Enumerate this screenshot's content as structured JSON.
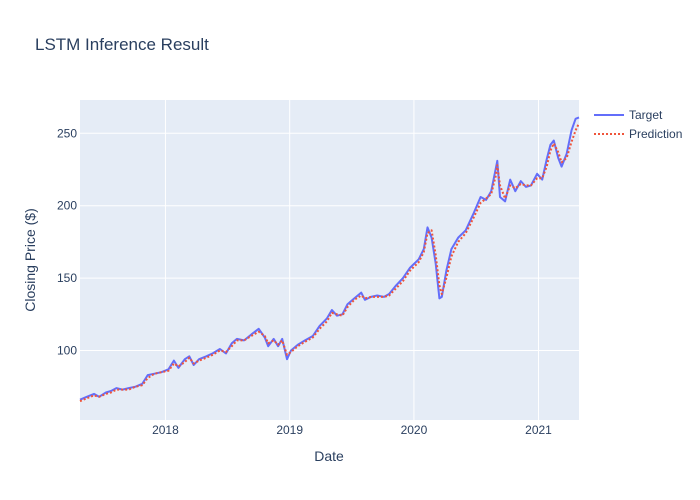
{
  "chart_data": {
    "type": "line",
    "title": "LSTM Inference Result",
    "xlabel": "Date",
    "ylabel": "Closing Price ($)",
    "x_range": [
      "2017-04-25",
      "2021-04-30"
    ],
    "ylim": [
      52,
      273
    ],
    "x_ticks": [
      {
        "value": "2018-01-01",
        "label": "2018"
      },
      {
        "value": "2019-01-01",
        "label": "2019"
      },
      {
        "value": "2020-01-01",
        "label": "2020"
      },
      {
        "value": "2021-01-01",
        "label": "2021"
      }
    ],
    "y_ticks": [
      {
        "value": 100,
        "label": "100"
      },
      {
        "value": 150,
        "label": "150"
      },
      {
        "value": 200,
        "label": "200"
      },
      {
        "value": 250,
        "label": "250"
      }
    ],
    "grid": true,
    "legend_position": "top-right",
    "colors": {
      "plot_bg": "#e5ecf6",
      "grid": "#ffffff",
      "target": "#636efa",
      "prediction": "#ef553b"
    },
    "series": [
      {
        "name": "Target",
        "style": "solid",
        "points": [
          [
            "2017-04-25",
            66
          ],
          [
            "2017-05-15",
            68
          ],
          [
            "2017-06-05",
            70
          ],
          [
            "2017-06-20",
            68
          ],
          [
            "2017-07-10",
            71
          ],
          [
            "2017-07-25",
            72
          ],
          [
            "2017-08-10",
            74
          ],
          [
            "2017-08-28",
            73
          ],
          [
            "2017-09-15",
            74
          ],
          [
            "2017-10-05",
            75
          ],
          [
            "2017-10-25",
            77
          ],
          [
            "2017-11-10",
            83
          ],
          [
            "2017-11-30",
            84
          ],
          [
            "2017-12-20",
            85
          ],
          [
            "2018-01-10",
            87
          ],
          [
            "2018-01-26",
            93
          ],
          [
            "2018-02-08",
            88
          ],
          [
            "2018-02-27",
            94
          ],
          [
            "2018-03-12",
            96
          ],
          [
            "2018-03-25",
            90
          ],
          [
            "2018-04-10",
            94
          ],
          [
            "2018-05-01",
            96
          ],
          [
            "2018-05-20",
            98
          ],
          [
            "2018-06-10",
            101
          ],
          [
            "2018-06-28",
            98
          ],
          [
            "2018-07-15",
            105
          ],
          [
            "2018-07-30",
            108
          ],
          [
            "2018-08-20",
            107
          ],
          [
            "2018-09-10",
            111
          ],
          [
            "2018-10-02",
            115
          ],
          [
            "2018-10-20",
            109
          ],
          [
            "2018-10-30",
            103
          ],
          [
            "2018-11-15",
            108
          ],
          [
            "2018-11-28",
            103
          ],
          [
            "2018-12-10",
            108
          ],
          [
            "2018-12-24",
            94
          ],
          [
            "2019-01-05",
            100
          ],
          [
            "2019-01-25",
            104
          ],
          [
            "2019-02-15",
            107
          ],
          [
            "2019-03-10",
            110
          ],
          [
            "2019-03-30",
            117
          ],
          [
            "2019-04-20",
            122
          ],
          [
            "2019-05-05",
            128
          ],
          [
            "2019-05-20",
            124
          ],
          [
            "2019-06-05",
            125
          ],
          [
            "2019-06-20",
            132
          ],
          [
            "2019-07-10",
            136
          ],
          [
            "2019-07-30",
            140
          ],
          [
            "2019-08-10",
            135
          ],
          [
            "2019-08-28",
            137
          ],
          [
            "2019-09-15",
            138
          ],
          [
            "2019-10-05",
            137
          ],
          [
            "2019-10-20",
            139
          ],
          [
            "2019-11-10",
            145
          ],
          [
            "2019-11-30",
            150
          ],
          [
            "2019-12-20",
            157
          ],
          [
            "2020-01-15",
            163
          ],
          [
            "2020-01-30",
            170
          ],
          [
            "2020-02-10",
            185
          ],
          [
            "2020-02-22",
            178
          ],
          [
            "2020-03-05",
            160
          ],
          [
            "2020-03-16",
            136
          ],
          [
            "2020-03-23",
            137
          ],
          [
            "2020-04-05",
            155
          ],
          [
            "2020-04-20",
            170
          ],
          [
            "2020-05-10",
            178
          ],
          [
            "2020-06-01",
            183
          ],
          [
            "2020-06-25",
            195
          ],
          [
            "2020-07-15",
            206
          ],
          [
            "2020-07-31",
            204
          ],
          [
            "2020-08-15",
            210
          ],
          [
            "2020-08-28",
            225
          ],
          [
            "2020-09-02",
            231
          ],
          [
            "2020-09-10",
            206
          ],
          [
            "2020-09-25",
            203
          ],
          [
            "2020-10-10",
            218
          ],
          [
            "2020-10-25",
            210
          ],
          [
            "2020-11-10",
            217
          ],
          [
            "2020-11-25",
            213
          ],
          [
            "2020-12-10",
            214
          ],
          [
            "2020-12-28",
            222
          ],
          [
            "2021-01-12",
            218
          ],
          [
            "2021-01-25",
            232
          ],
          [
            "2021-02-05",
            242
          ],
          [
            "2021-02-15",
            245
          ],
          [
            "2021-02-28",
            233
          ],
          [
            "2021-03-10",
            227
          ],
          [
            "2021-03-25",
            236
          ],
          [
            "2021-04-08",
            252
          ],
          [
            "2021-04-20",
            260
          ],
          [
            "2021-04-30",
            261
          ]
        ]
      },
      {
        "name": "Prediction",
        "style": "dotted",
        "points": [
          [
            "2017-04-25",
            65
          ],
          [
            "2017-05-15",
            67
          ],
          [
            "2017-06-05",
            69
          ],
          [
            "2017-06-20",
            68
          ],
          [
            "2017-07-10",
            70
          ],
          [
            "2017-07-25",
            71
          ],
          [
            "2017-08-10",
            73
          ],
          [
            "2017-08-28",
            73
          ],
          [
            "2017-09-15",
            73
          ],
          [
            "2017-10-05",
            75
          ],
          [
            "2017-10-25",
            76
          ],
          [
            "2017-11-10",
            81
          ],
          [
            "2017-11-30",
            84
          ],
          [
            "2017-12-20",
            85
          ],
          [
            "2018-01-10",
            86
          ],
          [
            "2018-01-26",
            91
          ],
          [
            "2018-02-08",
            89
          ],
          [
            "2018-02-27",
            92
          ],
          [
            "2018-03-12",
            95
          ],
          [
            "2018-03-25",
            91
          ],
          [
            "2018-04-10",
            93
          ],
          [
            "2018-05-01",
            95
          ],
          [
            "2018-05-20",
            97
          ],
          [
            "2018-06-10",
            100
          ],
          [
            "2018-06-28",
            99
          ],
          [
            "2018-07-15",
            103
          ],
          [
            "2018-07-30",
            107
          ],
          [
            "2018-08-20",
            107
          ],
          [
            "2018-09-10",
            110
          ],
          [
            "2018-10-02",
            113
          ],
          [
            "2018-10-20",
            110
          ],
          [
            "2018-10-30",
            105
          ],
          [
            "2018-11-15",
            107
          ],
          [
            "2018-11-28",
            104
          ],
          [
            "2018-12-10",
            107
          ],
          [
            "2018-12-24",
            97
          ],
          [
            "2019-01-05",
            99
          ],
          [
            "2019-01-25",
            103
          ],
          [
            "2019-02-15",
            106
          ],
          [
            "2019-03-10",
            109
          ],
          [
            "2019-03-30",
            115
          ],
          [
            "2019-04-20",
            120
          ],
          [
            "2019-05-05",
            126
          ],
          [
            "2019-05-20",
            125
          ],
          [
            "2019-06-05",
            124
          ],
          [
            "2019-06-20",
            130
          ],
          [
            "2019-07-10",
            135
          ],
          [
            "2019-07-30",
            138
          ],
          [
            "2019-08-10",
            136
          ],
          [
            "2019-08-28",
            137
          ],
          [
            "2019-09-15",
            137
          ],
          [
            "2019-10-05",
            137
          ],
          [
            "2019-10-20",
            138
          ],
          [
            "2019-11-10",
            143
          ],
          [
            "2019-11-30",
            148
          ],
          [
            "2019-12-20",
            155
          ],
          [
            "2020-01-15",
            161
          ],
          [
            "2020-01-30",
            168
          ],
          [
            "2020-02-10",
            181
          ],
          [
            "2020-02-22",
            183
          ],
          [
            "2020-03-05",
            166
          ],
          [
            "2020-03-16",
            145
          ],
          [
            "2020-03-23",
            139
          ],
          [
            "2020-04-05",
            150
          ],
          [
            "2020-04-20",
            165
          ],
          [
            "2020-05-10",
            175
          ],
          [
            "2020-06-01",
            181
          ],
          [
            "2020-06-25",
            192
          ],
          [
            "2020-07-15",
            202
          ],
          [
            "2020-07-31",
            205
          ],
          [
            "2020-08-15",
            208
          ],
          [
            "2020-08-28",
            220
          ],
          [
            "2020-09-02",
            228
          ],
          [
            "2020-09-10",
            214
          ],
          [
            "2020-09-25",
            205
          ],
          [
            "2020-10-10",
            214
          ],
          [
            "2020-10-25",
            212
          ],
          [
            "2020-11-10",
            215
          ],
          [
            "2020-11-25",
            214
          ],
          [
            "2020-12-10",
            214
          ],
          [
            "2020-12-28",
            219
          ],
          [
            "2021-01-12",
            219
          ],
          [
            "2021-01-25",
            227
          ],
          [
            "2021-02-05",
            238
          ],
          [
            "2021-02-15",
            243
          ],
          [
            "2021-02-28",
            237
          ],
          [
            "2021-03-10",
            230
          ],
          [
            "2021-03-25",
            233
          ],
          [
            "2021-04-08",
            244
          ],
          [
            "2021-04-20",
            252
          ],
          [
            "2021-04-30",
            257
          ]
        ]
      }
    ]
  }
}
